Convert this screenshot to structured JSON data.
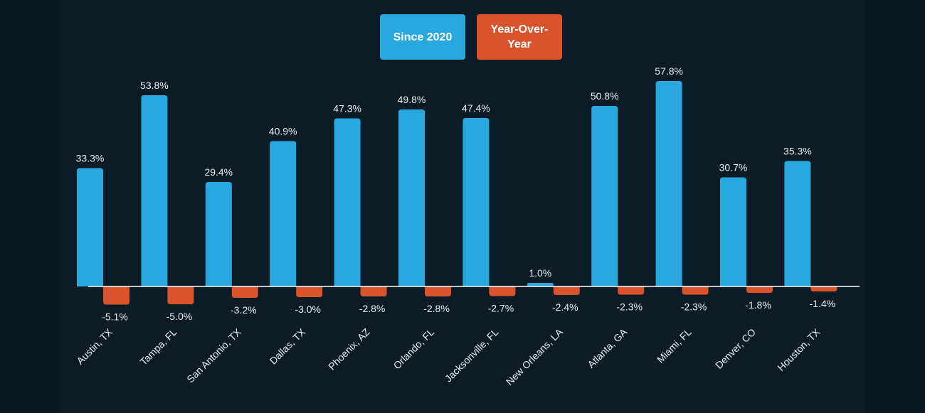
{
  "colors": {
    "background": "#0a1a23",
    "since2020": "#29a8e0",
    "yoy": "#d9532c",
    "axis": "#ffffff",
    "text": "#e6eef2"
  },
  "chart_data": {
    "type": "bar",
    "categories": [
      "Austin, TX",
      "Tampa, FL",
      "San Antonio, TX",
      "Dallas, TX",
      "Phoenix, AZ",
      "Orlando, FL",
      "Jacksonville, FL",
      "New Orleans, LA",
      "Atlanta, GA",
      "Miami, FL",
      "Denver, CO",
      "Houston, TX"
    ],
    "series": [
      {
        "name": "Since 2020",
        "values": [
          33.3,
          53.8,
          29.4,
          40.9,
          47.3,
          49.8,
          47.4,
          1.0,
          50.8,
          57.8,
          30.7,
          35.3
        ],
        "labels": [
          "33.3%",
          "53.8%",
          "29.4%",
          "40.9%",
          "47.3%",
          "49.8%",
          "47.4%",
          "1.0%",
          "50.8%",
          "57.8%",
          "30.7%",
          "35.3%"
        ]
      },
      {
        "name": "Year-Over-Year",
        "values": [
          -5.1,
          -5.0,
          -3.2,
          -3.0,
          -2.8,
          -2.8,
          -2.7,
          -2.4,
          -2.3,
          -2.3,
          -1.8,
          -1.4
        ],
        "labels": [
          "-5.1%",
          "-5.0%",
          "-3.2%",
          "-3.0%",
          "-2.8%",
          "-2.8%",
          "-2.7%",
          "-2.4%",
          "-2.3%",
          "-2.3%",
          "-1.8%",
          "-1.4%"
        ]
      }
    ],
    "legend_placement": "top-center",
    "grid": false,
    "ylim": [
      -5.1,
      57.8
    ]
  }
}
